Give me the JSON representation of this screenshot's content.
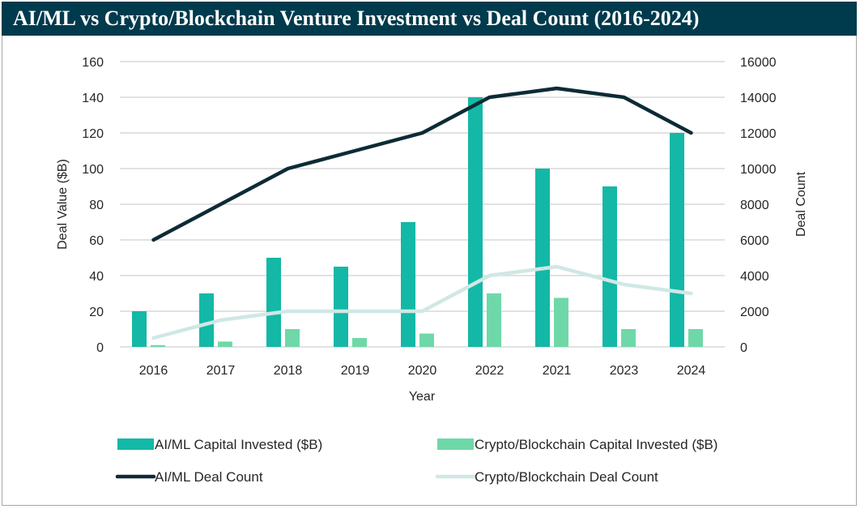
{
  "chart_data": {
    "type": "bar",
    "title": "AI/ML vs Crypto/Blockchain Venture Investment vs Deal Count (2016-2024)",
    "xlabel": "Year",
    "ylabel": "Deal Value ($B)",
    "y2label": "Deal Count",
    "categories": [
      "2016",
      "2017",
      "2018",
      "2019",
      "2020",
      "2022",
      "2021",
      "2023",
      "2024"
    ],
    "ylim": [
      0,
      160
    ],
    "y_ticks": [
      0,
      20,
      40,
      60,
      80,
      100,
      120,
      140,
      160
    ],
    "y2lim": [
      0,
      16000
    ],
    "y2_ticks": [
      0,
      2000,
      4000,
      6000,
      8000,
      10000,
      12000,
      14000,
      16000
    ],
    "grid": true,
    "legend_position": "bottom",
    "series": [
      {
        "name": "AI/ML Capital Invested ($B)",
        "type": "bar",
        "axis": "left",
        "color": "#14b8a6",
        "values": [
          20,
          30,
          50,
          45,
          70,
          140,
          100,
          90,
          120
        ]
      },
      {
        "name": "Crypto/Blockchain Capital Invested ($B)",
        "type": "bar",
        "axis": "left",
        "color": "#6fd8a8",
        "values": [
          1,
          3,
          10,
          5,
          7.5,
          30,
          27.5,
          10,
          10
        ]
      },
      {
        "name": "AI/ML Deal Count",
        "type": "line",
        "axis": "right",
        "color": "#0d2b36",
        "values": [
          6000,
          8000,
          10000,
          11000,
          12000,
          14000,
          14500,
          14000,
          12000
        ]
      },
      {
        "name": "Crypto/Blockchain Deal Count",
        "type": "line",
        "axis": "right",
        "color": "#d0e8e5",
        "values": [
          500,
          1500,
          2000,
          2000,
          2000,
          4000,
          4500,
          3500,
          3000
        ]
      }
    ]
  },
  "colors": {
    "title_bg": "#003a4d",
    "title_text": "#ffffff",
    "grid": "#d9d9d9"
  }
}
